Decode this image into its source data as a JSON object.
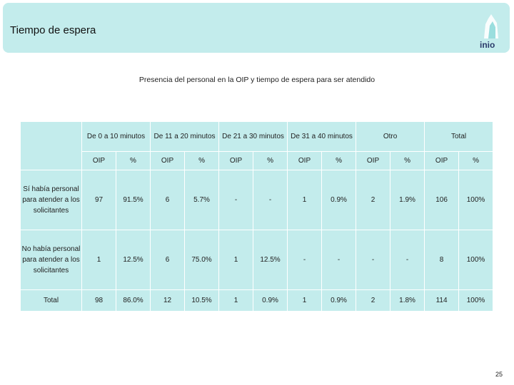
{
  "header": {
    "title": "Tiempo de espera",
    "logo_text": "inio"
  },
  "subtitle": "Presencia del personal en la OIP y tiempo de espera para ser atendido",
  "table": {
    "corner": "",
    "groups": [
      "De 0 a 10 minutos",
      "De 11 a 20 minutos",
      "De 21 a 30 minutos",
      "De 31 a 40 minutos",
      "Otro",
      "Total"
    ],
    "subheaders": [
      "OIP",
      "%",
      "OIP",
      "%",
      "OIP",
      "%",
      "OIP",
      "%",
      "OIP",
      "%",
      "OIP",
      "%"
    ],
    "rows": [
      {
        "label": "Sí había personal para atender a los solicitantes",
        "cells": [
          "97",
          "91.5%",
          "6",
          "5.7%",
          "-",
          "-",
          "1",
          "0.9%",
          "2",
          "1.9%",
          "106",
          "100%"
        ]
      },
      {
        "label": "No había personal para atender a los solicitantes",
        "cells": [
          "1",
          "12.5%",
          "6",
          "75.0%",
          "1",
          "12.5%",
          "-",
          "-",
          "-",
          "-",
          "8",
          "100%"
        ]
      },
      {
        "label": "Total",
        "cells": [
          "98",
          "86.0%",
          "12",
          "10.5%",
          "1",
          "0.9%",
          "1",
          "0.9%",
          "2",
          "1.8%",
          "114",
          "100%"
        ]
      }
    ]
  },
  "page_number": "25",
  "colors": {
    "header_bg": "#c3ecec",
    "cell_bg": "#c3ecec",
    "border": "#ffffff"
  }
}
